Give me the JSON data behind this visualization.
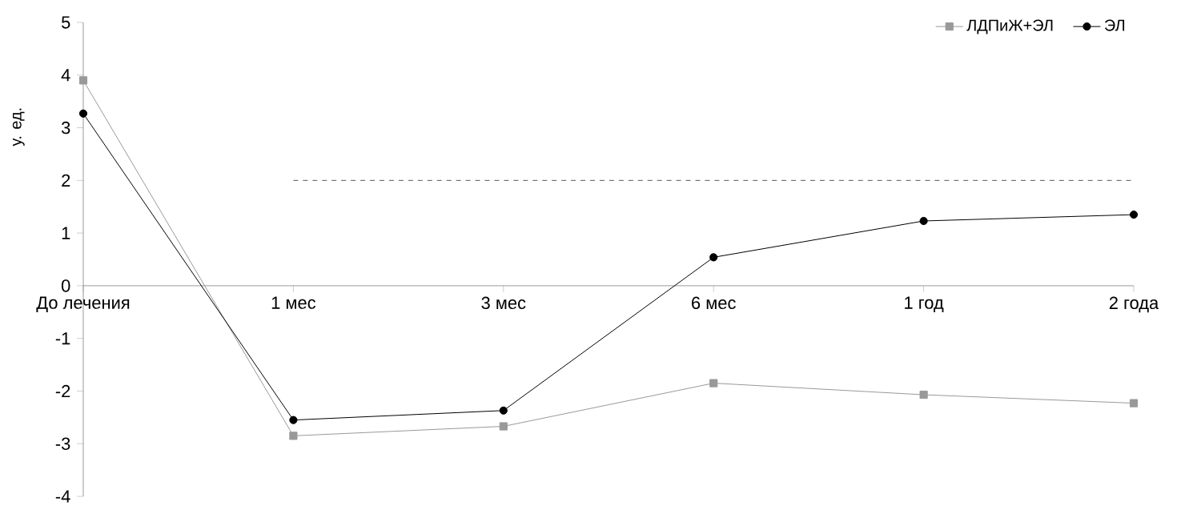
{
  "chart_data": {
    "type": "line",
    "ylabel": "у. ед.",
    "categories": [
      "До лечения",
      "1 мес",
      "3 мес",
      "6 мес",
      "1 год",
      "2 года"
    ],
    "series": [
      {
        "name": "ЛДПиЖ+ЭЛ",
        "color": "#999999",
        "marker": "square",
        "values": [
          3.9,
          -2.85,
          -2.67,
          -1.85,
          -2.07,
          -2.23
        ]
      },
      {
        "name": "ЭЛ",
        "color": "#000000",
        "marker": "circle",
        "values": [
          3.27,
          -2.55,
          -2.37,
          0.54,
          1.23,
          1.35
        ]
      }
    ],
    "ylim": [
      -4,
      5
    ],
    "yticks": [
      -4,
      -3,
      -2,
      -1,
      0,
      1,
      2,
      3,
      4,
      5
    ],
    "ref_lines": [
      {
        "axis": "y",
        "value": 2,
        "line_style": "dashed",
        "color": "#555555"
      }
    ],
    "grid": false,
    "legend": "top right",
    "line_style": "solid"
  }
}
